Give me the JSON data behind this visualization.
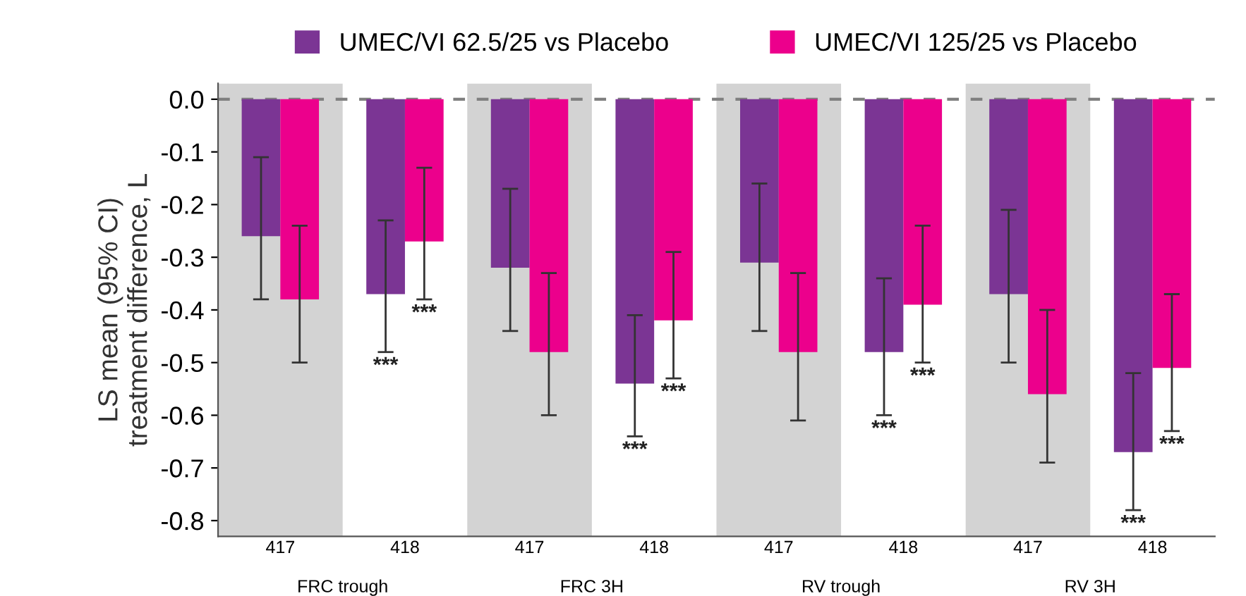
{
  "chart_data": {
    "type": "bar",
    "ylabel": "LS mean (95% CI)\ntreatment difference, L",
    "categories": [
      "417",
      "418",
      "417",
      "418",
      "417",
      "418",
      "417",
      "418"
    ],
    "series": [
      {
        "name": "UMEC/VI 62.5/25 vs Placebo",
        "color": "#7b3594",
        "values": [
          -0.26,
          -0.37,
          -0.32,
          -0.54,
          -0.31,
          -0.48,
          -0.37,
          -0.67
        ],
        "errors": [
          [
            -0.38,
            -0.11
          ],
          [
            -0.48,
            -0.23
          ],
          [
            -0.44,
            -0.17
          ],
          [
            -0.64,
            -0.41
          ],
          [
            -0.44,
            -0.16
          ],
          [
            -0.6,
            -0.34
          ],
          [
            -0.5,
            -0.21
          ],
          [
            -0.78,
            -0.52
          ]
        ],
        "value_labels": [
          null,
          "***",
          null,
          "***",
          null,
          "***",
          null,
          "***"
        ]
      },
      {
        "name": "UMEC/VI 125/25 vs Placebo",
        "color": "#ec008c",
        "values": [
          -0.38,
          -0.27,
          -0.48,
          -0.42,
          -0.48,
          -0.39,
          -0.56,
          -0.51
        ],
        "errors": [
          [
            -0.5,
            -0.24
          ],
          [
            -0.38,
            -0.13
          ],
          [
            -0.6,
            -0.33
          ],
          [
            -0.53,
            -0.29
          ],
          [
            -0.61,
            -0.33
          ],
          [
            -0.5,
            -0.24
          ],
          [
            -0.69,
            -0.4
          ],
          [
            -0.63,
            -0.37
          ]
        ],
        "value_labels": [
          null,
          "***",
          null,
          "***",
          null,
          "***",
          null,
          "***"
        ]
      }
    ],
    "annotations": [
      "FRC trough",
      "FRC 3H",
      "RV trough",
      "RV 3H"
    ],
    "ref_lines": [
      {
        "axis": "y",
        "value": 0,
        "color": "#808080",
        "line_style": "dashed"
      }
    ],
    "ylim": [
      -0.83,
      0.03
    ],
    "yticks": [
      {
        "value": 0,
        "label": "0.0"
      },
      -0.1,
      -0.2,
      -0.3,
      -0.4,
      -0.5,
      -0.6,
      -0.7,
      -0.8
    ],
    "grid": false,
    "legend": "top"
  }
}
